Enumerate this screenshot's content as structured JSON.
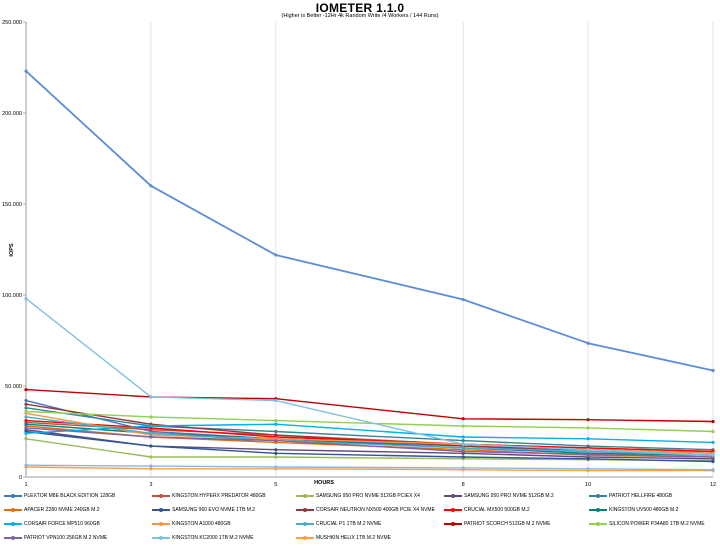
{
  "chart_data": {
    "type": "line",
    "title": "IOMETER 1.1.0",
    "subtitle": "(Higher is Better -12Hr 4k Random Write /4 Workers / 144 Runs)",
    "xlabel": "HOURS",
    "ylabel": "IOPS",
    "x": [
      1,
      3,
      5,
      8,
      10,
      12
    ],
    "ylim": [
      0,
      250000
    ],
    "yticks": [
      "0",
      "50.000",
      "100.000",
      "150.000",
      "200.000",
      "250.000"
    ],
    "ytick_values": [
      0,
      50000,
      100000,
      150000,
      200000,
      250000
    ],
    "grid": "vertical",
    "legend_position": "bottom",
    "series": [
      {
        "name": "PLEXTOR M8E BLACK EDITION 128GB",
        "color": "#4472c4",
        "values": [
          42000,
          25000,
          21000,
          17000,
          14000,
          12000
        ]
      },
      {
        "name": "KINGSTON HYPERX PREDATOR 480GB",
        "color": "#c0504d",
        "values": [
          30000,
          26000,
          23000,
          18000,
          16000,
          14000
        ]
      },
      {
        "name": "SAMSUNG 950 PRO NVME 512GB PCIEX X4",
        "color": "#9bbb59",
        "values": [
          21000,
          11000,
          11000,
          10000,
          9500,
          9000
        ]
      },
      {
        "name": "SAMSUNG 950 PRO NVME 512GB M.2",
        "color": "#604a7b",
        "values": [
          26000,
          17000,
          15000,
          13000,
          11000,
          10000
        ]
      },
      {
        "name": "PATRIOT HELLFIRE 480GB",
        "color": "#31869b",
        "values": [
          38000,
          28000,
          25000,
          20000,
          17000,
          15000
        ]
      },
      {
        "name": "APACER Z280 NVME 240GB M.2",
        "color": "#e46c0a",
        "values": [
          28000,
          22000,
          19000,
          15000,
          12000,
          11000
        ]
      },
      {
        "name": "SAMSUNG 960 EVO NVME 1TB M.2",
        "color": "#2e5597",
        "values": [
          25000,
          17000,
          13000,
          11000,
          10000,
          8500
        ]
      },
      {
        "name": "CORSAIR NEUTRON NX500 400GB PCIE X4 NVME",
        "color": "#953735",
        "values": [
          40000,
          29000,
          23000,
          17000,
          15000,
          13000
        ]
      },
      {
        "name": "CRUCIAL MX500 500GB M.2",
        "color": "#ff0000",
        "values": [
          31000,
          27000,
          22000,
          18000,
          16000,
          14000
        ]
      },
      {
        "name": "KINGSTON UV500 480GB M.2",
        "color": "#00837f",
        "values": [
          29000,
          24000,
          21000,
          16000,
          13000,
          12000
        ]
      },
      {
        "name": "CORSAIR FORCE MP510 960GB",
        "color": "#00b0f0",
        "values": [
          24000,
          28000,
          29000,
          22000,
          21000,
          19000
        ]
      },
      {
        "name": "KINGSTON A1000 480GB",
        "color": "#f79646",
        "values": [
          35000,
          23000,
          21000,
          18000,
          15000,
          13000
        ]
      },
      {
        "name": "CRUCIAL P1 1TB M.2 NVME",
        "color": "#4bacc6",
        "values": [
          33000,
          24000,
          20000,
          16000,
          14000,
          12000
        ]
      },
      {
        "name": "PATRIOT SCORCH 512GB M.2 NVME",
        "color": "#c00000",
        "values": [
          48000,
          44000,
          43000,
          32000,
          31500,
          30500
        ]
      },
      {
        "name": "SILICON POWER P34A80 1TB M.2 NVME",
        "color": "#92d050",
        "values": [
          36000,
          33000,
          31000,
          28000,
          27000,
          25000
        ]
      },
      {
        "name": "PATRIOT VPN100 256GB M.2 NVME",
        "color": "#8064a2",
        "values": [
          27000,
          22000,
          20000,
          14000,
          12500,
          11000
        ]
      },
      {
        "name": "KINGSTON KC2000 1TB M.2 NVME",
        "color": "#7cc2e0",
        "values": [
          98000,
          44000,
          42000,
          18000,
          15000,
          12000
        ]
      },
      {
        "name": "MUSHKIN HELIX 1TB M.2 NVME",
        "color": "#ffa040",
        "values": [
          5500,
          4500,
          4500,
          4000,
          3500,
          3500
        ]
      },
      {
        "name": "",
        "color": "#5b8dd9",
        "values": [
          223000,
          160000,
          122000,
          97500,
          73500,
          58500
        ]
      },
      {
        "name": "",
        "color": "#8eb4e3",
        "values": [
          6500,
          6000,
          5500,
          5000,
          4500,
          4000
        ]
      }
    ]
  }
}
